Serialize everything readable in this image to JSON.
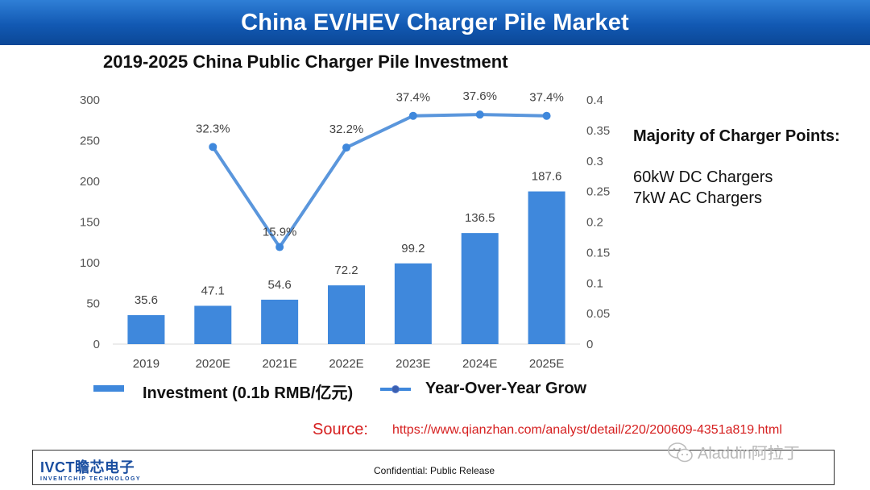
{
  "header": {
    "title": "China EV/HEV Charger Pile Market"
  },
  "chart_data": {
    "type": "bar",
    "title": "2019-2025 China Public Charger Pile Investment",
    "categories": [
      "2019",
      "2020E",
      "2021E",
      "2022E",
      "2023E",
      "2024E",
      "2025E"
    ],
    "series": [
      {
        "name": "Investment (0.1b RMB/亿元)",
        "type": "bar",
        "axis": "left",
        "values": [
          35.6,
          47.1,
          54.6,
          72.2,
          99.2,
          136.5,
          187.6
        ],
        "labels": [
          "35.6",
          "47.1",
          "54.6",
          "72.2",
          "99.2",
          "136.5",
          "187.6"
        ]
      },
      {
        "name": "Year-Over-Year Grow",
        "type": "line",
        "axis": "right",
        "values": [
          null,
          0.323,
          0.159,
          0.322,
          0.374,
          0.376,
          0.374
        ],
        "labels": [
          "",
          "32.3%",
          "15.9%",
          "32.2%",
          "37.4%",
          "37.6%",
          "37.4%"
        ]
      }
    ],
    "y_left": {
      "range": [
        0,
        300
      ],
      "ticks": [
        "0",
        "50",
        "100",
        "150",
        "200",
        "250",
        "300"
      ]
    },
    "y_right": {
      "range": [
        0,
        0.4
      ],
      "ticks": [
        "0",
        "0.05",
        "0.1",
        "0.15",
        "0.2",
        "0.25",
        "0.3",
        "0.35",
        "0.4"
      ]
    },
    "grid": false,
    "legend_position": "bottom",
    "colors": {
      "bar": "#3f88dc",
      "line": "#5a96dc",
      "marker": "#3f88dc"
    }
  },
  "notes": {
    "heading": "Majority of Charger Points:",
    "items": [
      "60kW DC Chargers",
      "7kW AC Chargers"
    ]
  },
  "source": {
    "label": "Source:",
    "url": "https://www.qianzhan.com/analyst/detail/220/200609-4351a819.html"
  },
  "footer": {
    "logo_main": "IVCT瞻芯电子",
    "logo_sub": "INVENTCHIP TECHNOLOGY",
    "confidential": "Confidential: Public Release"
  },
  "watermark": {
    "text": "Aladdin阿拉丁",
    "icon": "wechat-icon"
  }
}
